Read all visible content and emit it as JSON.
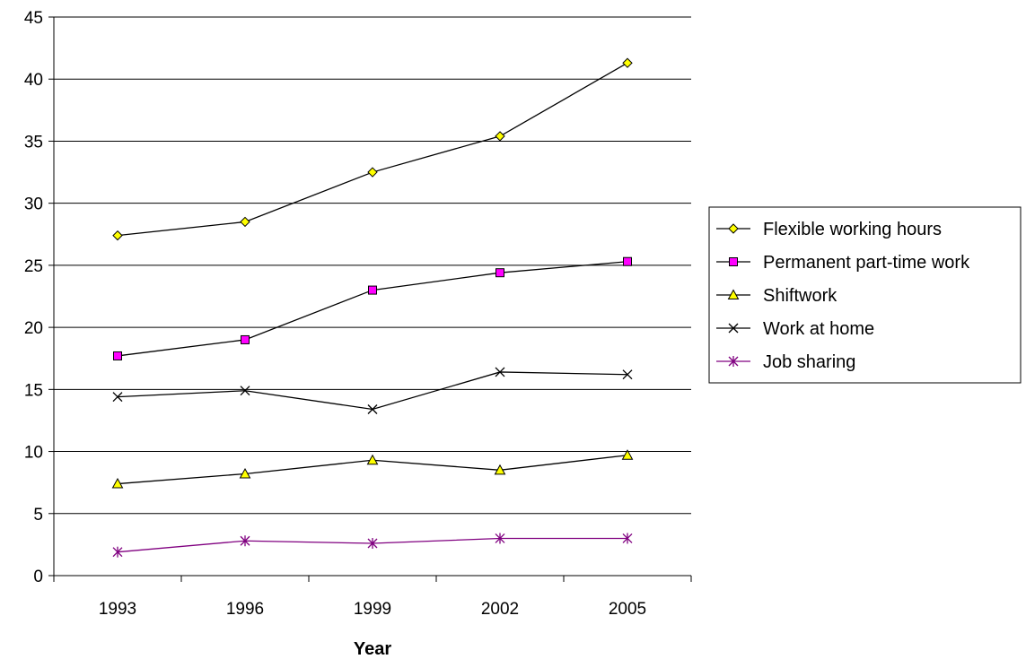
{
  "chart_data": {
    "type": "line",
    "title": "",
    "xlabel": "Year",
    "ylabel": "",
    "categories": [
      "1993",
      "1996",
      "1999",
      "2002",
      "2005"
    ],
    "ylim": [
      0,
      45
    ],
    "yticks": [
      0,
      5,
      10,
      15,
      20,
      25,
      30,
      35,
      40,
      45
    ],
    "grid": "horizontal",
    "legend_position": "right",
    "series": [
      {
        "name": "Flexible working hours",
        "values": [
          27.4,
          28.5,
          32.5,
          35.4,
          41.3
        ],
        "color": "#000000",
        "marker": "diamond",
        "marker_fill": "#FFFF00"
      },
      {
        "name": "Permanent part-time work",
        "values": [
          17.7,
          19.0,
          23.0,
          24.4,
          25.3
        ],
        "color": "#000000",
        "marker": "square",
        "marker_fill": "#FF00FF"
      },
      {
        "name": "Shiftwork",
        "values": [
          7.4,
          8.2,
          9.3,
          8.5,
          9.7
        ],
        "color": "#000000",
        "marker": "triangle",
        "marker_fill": "#FFFF00"
      },
      {
        "name": "Work at home",
        "values": [
          14.4,
          14.9,
          13.4,
          16.4,
          16.2
        ],
        "color": "#000000",
        "marker": "x",
        "marker_fill": "none"
      },
      {
        "name": "Job sharing",
        "values": [
          1.9,
          2.8,
          2.6,
          3.0,
          3.0
        ],
        "color": "#800080",
        "marker": "asterisk",
        "marker_fill": "none"
      }
    ]
  }
}
